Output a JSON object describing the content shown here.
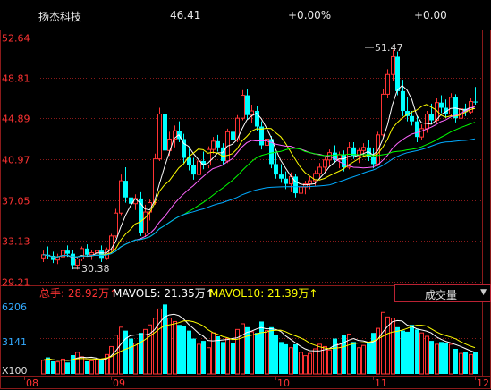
{
  "header": {
    "stock_name": "扬杰科技",
    "price": "46.41",
    "change_pct": "+0.00%",
    "change": "+0.00"
  },
  "colors": {
    "up": "#ff3333",
    "down": "#00ffff",
    "grid": "#8b1a1a",
    "ma5": "#ffffff",
    "ma10": "#ffff00",
    "ma20": "#ff66ff",
    "ma30": "#00ff00",
    "ma60": "#00aaff",
    "axis_text": "#ff3333"
  },
  "chart_data": {
    "type": "candlestick",
    "y_ticks": [
      "52.64",
      "48.81",
      "44.89",
      "40.97",
      "37.05",
      "33.13",
      "29.21"
    ],
    "ylim": [
      29.21,
      52.64
    ],
    "x_ticks": [
      "08",
      "09",
      "10",
      "11",
      "12"
    ],
    "annotations": {
      "high": "51.47",
      "low": "30.38"
    },
    "volume": {
      "y_ticks": [
        "6206",
        "3141",
        "X100"
      ],
      "ylim": [
        0,
        6206
      ],
      "legend": {
        "total": "总手: 28.92万↑",
        "mavol5": "MAVOL5: 21.35万↑",
        "mavol10": "MAVOL10: 21.39万↑"
      },
      "indicator": "成交量"
    },
    "candles": [
      {
        "o": 31.5,
        "h": 32.2,
        "l": 31.1,
        "c": 31.8
      },
      {
        "o": 31.8,
        "h": 32.6,
        "l": 31.4,
        "c": 31.7
      },
      {
        "o": 31.7,
        "h": 32.1,
        "l": 31.0,
        "c": 31.3
      },
      {
        "o": 31.3,
        "h": 31.9,
        "l": 30.9,
        "c": 31.6
      },
      {
        "o": 31.6,
        "h": 32.5,
        "l": 31.3,
        "c": 32.2
      },
      {
        "o": 32.2,
        "h": 32.7,
        "l": 31.6,
        "c": 31.9
      },
      {
        "o": 31.9,
        "h": 32.3,
        "l": 30.4,
        "c": 30.8
      },
      {
        "o": 30.8,
        "h": 31.6,
        "l": 30.38,
        "c": 31.4
      },
      {
        "o": 31.4,
        "h": 32.6,
        "l": 31.2,
        "c": 32.4
      },
      {
        "o": 32.4,
        "h": 32.8,
        "l": 31.6,
        "c": 31.8
      },
      {
        "o": 31.8,
        "h": 32.3,
        "l": 31.3,
        "c": 32.0
      },
      {
        "o": 32.0,
        "h": 32.6,
        "l": 31.6,
        "c": 32.2
      },
      {
        "o": 32.2,
        "h": 32.7,
        "l": 31.1,
        "c": 31.5
      },
      {
        "o": 31.5,
        "h": 32.5,
        "l": 31.3,
        "c": 32.3
      },
      {
        "o": 32.3,
        "h": 33.8,
        "l": 32.1,
        "c": 33.6
      },
      {
        "o": 33.6,
        "h": 36.2,
        "l": 33.4,
        "c": 35.8
      },
      {
        "o": 35.8,
        "h": 39.5,
        "l": 35.6,
        "c": 38.9
      },
      {
        "o": 38.9,
        "h": 40.2,
        "l": 36.8,
        "c": 37.3
      },
      {
        "o": 37.3,
        "h": 38.1,
        "l": 36.2,
        "c": 36.7
      },
      {
        "o": 36.7,
        "h": 37.6,
        "l": 36.1,
        "c": 37.2
      },
      {
        "o": 37.2,
        "h": 37.8,
        "l": 33.6,
        "c": 33.9
      },
      {
        "o": 33.9,
        "h": 36.6,
        "l": 33.5,
        "c": 35.9
      },
      {
        "o": 35.9,
        "h": 37.1,
        "l": 35.1,
        "c": 36.8
      },
      {
        "o": 36.8,
        "h": 41.5,
        "l": 36.6,
        "c": 41.0
      },
      {
        "o": 41.0,
        "h": 45.9,
        "l": 40.8,
        "c": 45.3
      },
      {
        "o": 45.3,
        "h": 48.4,
        "l": 41.2,
        "c": 41.8
      },
      {
        "o": 41.8,
        "h": 43.6,
        "l": 41.3,
        "c": 42.9
      },
      {
        "o": 42.9,
        "h": 44.2,
        "l": 42.1,
        "c": 43.7
      },
      {
        "o": 43.7,
        "h": 44.6,
        "l": 42.6,
        "c": 42.9
      },
      {
        "o": 42.9,
        "h": 43.4,
        "l": 40.6,
        "c": 41.1
      },
      {
        "o": 41.1,
        "h": 42.0,
        "l": 39.9,
        "c": 40.4
      },
      {
        "o": 40.4,
        "h": 41.1,
        "l": 39.0,
        "c": 39.5
      },
      {
        "o": 39.5,
        "h": 41.2,
        "l": 39.3,
        "c": 40.8
      },
      {
        "o": 40.8,
        "h": 41.7,
        "l": 40.0,
        "c": 40.4
      },
      {
        "o": 40.4,
        "h": 42.2,
        "l": 40.1,
        "c": 41.9
      },
      {
        "o": 41.9,
        "h": 43.1,
        "l": 41.5,
        "c": 42.7
      },
      {
        "o": 42.7,
        "h": 43.3,
        "l": 41.7,
        "c": 42.1
      },
      {
        "o": 42.1,
        "h": 42.5,
        "l": 40.4,
        "c": 40.8
      },
      {
        "o": 40.8,
        "h": 43.9,
        "l": 40.6,
        "c": 43.6
      },
      {
        "o": 43.6,
        "h": 44.6,
        "l": 42.4,
        "c": 42.8
      },
      {
        "o": 42.8,
        "h": 45.2,
        "l": 42.6,
        "c": 44.9
      },
      {
        "o": 44.9,
        "h": 47.6,
        "l": 44.7,
        "c": 47.1
      },
      {
        "o": 47.1,
        "h": 47.7,
        "l": 44.8,
        "c": 45.2
      },
      {
        "o": 45.2,
        "h": 46.2,
        "l": 44.4,
        "c": 45.6
      },
      {
        "o": 45.6,
        "h": 46.1,
        "l": 43.7,
        "c": 44.1
      },
      {
        "o": 44.1,
        "h": 44.6,
        "l": 41.9,
        "c": 42.3
      },
      {
        "o": 42.3,
        "h": 43.3,
        "l": 41.6,
        "c": 42.9
      },
      {
        "o": 42.9,
        "h": 43.2,
        "l": 40.1,
        "c": 40.5
      },
      {
        "o": 40.5,
        "h": 41.6,
        "l": 39.1,
        "c": 39.5
      },
      {
        "o": 39.5,
        "h": 40.5,
        "l": 38.7,
        "c": 39.1
      },
      {
        "o": 39.1,
        "h": 39.8,
        "l": 38.1,
        "c": 38.6
      },
      {
        "o": 38.6,
        "h": 39.7,
        "l": 37.8,
        "c": 39.3
      },
      {
        "o": 39.3,
        "h": 39.6,
        "l": 37.3,
        "c": 37.7
      },
      {
        "o": 37.7,
        "h": 38.7,
        "l": 37.4,
        "c": 38.3
      },
      {
        "o": 38.3,
        "h": 38.9,
        "l": 37.6,
        "c": 38.6
      },
      {
        "o": 38.6,
        "h": 39.3,
        "l": 38.1,
        "c": 38.9
      },
      {
        "o": 38.9,
        "h": 39.9,
        "l": 38.4,
        "c": 39.6
      },
      {
        "o": 39.6,
        "h": 40.6,
        "l": 39.1,
        "c": 40.2
      },
      {
        "o": 40.2,
        "h": 41.2,
        "l": 39.7,
        "c": 40.9
      },
      {
        "o": 40.9,
        "h": 41.9,
        "l": 40.3,
        "c": 41.6
      },
      {
        "o": 41.6,
        "h": 42.3,
        "l": 40.6,
        "c": 40.9
      },
      {
        "o": 40.9,
        "h": 41.7,
        "l": 40.1,
        "c": 41.4
      },
      {
        "o": 41.4,
        "h": 41.8,
        "l": 39.8,
        "c": 40.2
      },
      {
        "o": 40.2,
        "h": 42.6,
        "l": 40.0,
        "c": 42.1
      },
      {
        "o": 42.1,
        "h": 42.6,
        "l": 41.0,
        "c": 41.3
      },
      {
        "o": 41.3,
        "h": 42.1,
        "l": 40.6,
        "c": 41.8
      },
      {
        "o": 41.8,
        "h": 42.5,
        "l": 41.2,
        "c": 42.1
      },
      {
        "o": 42.1,
        "h": 42.8,
        "l": 40.8,
        "c": 41.2
      },
      {
        "o": 41.2,
        "h": 42.0,
        "l": 40.1,
        "c": 40.5
      },
      {
        "o": 40.5,
        "h": 43.6,
        "l": 40.3,
        "c": 43.3
      },
      {
        "o": 43.3,
        "h": 47.7,
        "l": 43.1,
        "c": 47.2
      },
      {
        "o": 47.2,
        "h": 49.6,
        "l": 46.8,
        "c": 49.1
      },
      {
        "o": 49.1,
        "h": 51.47,
        "l": 48.5,
        "c": 50.8
      },
      {
        "o": 50.8,
        "h": 51.3,
        "l": 47.1,
        "c": 47.5
      },
      {
        "o": 47.5,
        "h": 48.6,
        "l": 45.1,
        "c": 45.6
      },
      {
        "o": 45.6,
        "h": 46.9,
        "l": 44.6,
        "c": 45.1
      },
      {
        "o": 45.1,
        "h": 45.6,
        "l": 44.2,
        "c": 44.6
      },
      {
        "o": 44.6,
        "h": 45.1,
        "l": 42.6,
        "c": 43.1
      },
      {
        "o": 43.1,
        "h": 44.3,
        "l": 42.8,
        "c": 43.9
      },
      {
        "o": 43.9,
        "h": 45.6,
        "l": 43.5,
        "c": 45.3
      },
      {
        "o": 45.3,
        "h": 46.3,
        "l": 44.3,
        "c": 44.7
      },
      {
        "o": 44.7,
        "h": 46.8,
        "l": 44.5,
        "c": 46.4
      },
      {
        "o": 46.4,
        "h": 47.1,
        "l": 45.4,
        "c": 45.9
      },
      {
        "o": 45.9,
        "h": 46.7,
        "l": 44.9,
        "c": 45.3
      },
      {
        "o": 45.3,
        "h": 47.3,
        "l": 45.1,
        "c": 46.9
      },
      {
        "o": 46.9,
        "h": 47.2,
        "l": 44.5,
        "c": 44.9
      },
      {
        "o": 44.9,
        "h": 46.1,
        "l": 44.4,
        "c": 45.8
      },
      {
        "o": 45.8,
        "h": 46.3,
        "l": 45.1,
        "c": 45.5
      },
      {
        "o": 45.5,
        "h": 46.8,
        "l": 45.3,
        "c": 46.5
      },
      {
        "o": 46.5,
        "h": 47.9,
        "l": 46.2,
        "c": 46.41
      }
    ],
    "volume_values": [
      1200,
      1450,
      1100,
      1050,
      1300,
      1000,
      1650,
      1900,
      1500,
      1100,
      1150,
      1250,
      1300,
      1700,
      2400,
      3400,
      4100,
      3800,
      3100,
      2700,
      3600,
      3900,
      4300,
      4900,
      5700,
      6100,
      4900,
      4600,
      4300,
      4200,
      3800,
      3100,
      2600,
      2900,
      2300,
      3600,
      3300,
      2800,
      3100,
      2700,
      3900,
      4400,
      4100,
      3700,
      3600,
      4600,
      3800,
      4100,
      3400,
      2800,
      2600,
      2300,
      2600,
      1900,
      1600,
      1800,
      2200,
      2600,
      2400,
      2100,
      3100,
      2700,
      3400,
      3500,
      2800,
      2300,
      2500,
      2800,
      3600,
      4000,
      5400,
      5000,
      4900,
      4100,
      3800,
      3700,
      4300,
      3900,
      3600,
      3300,
      2900,
      2600,
      2800,
      2700,
      2600,
      2200,
      1800,
      1900,
      1700,
      1900
    ]
  }
}
